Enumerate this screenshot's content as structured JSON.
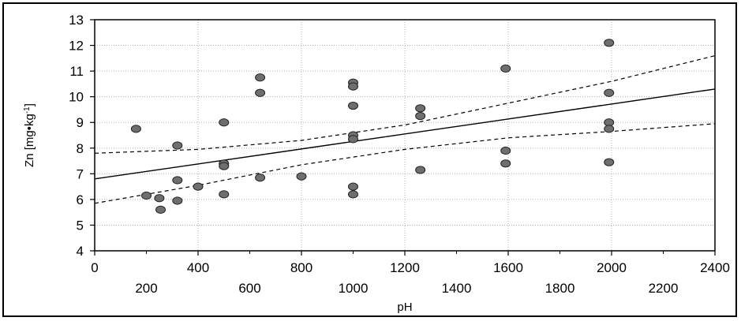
{
  "chart_data": {
    "type": "scatter",
    "title": "",
    "xlabel": "pH",
    "ylabel_main": "Zn [mg•kg",
    "ylabel_sup": "-1",
    "ylabel_close": "]",
    "xlim": [
      0,
      2400
    ],
    "ylim": [
      4,
      13
    ],
    "x_ticks_major": [
      0,
      400,
      800,
      1200,
      1600,
      2000,
      2400
    ],
    "x_ticks_minor": [
      200,
      600,
      1000,
      1400,
      1800,
      2200
    ],
    "y_ticks": [
      4,
      5,
      6,
      7,
      8,
      9,
      10,
      11,
      12,
      13
    ],
    "grid": true,
    "marker_color": "#6e6e6e",
    "points": [
      {
        "x": 160,
        "y": 8.75
      },
      {
        "x": 200,
        "y": 6.15
      },
      {
        "x": 250,
        "y": 6.05
      },
      {
        "x": 255,
        "y": 5.6
      },
      {
        "x": 320,
        "y": 8.1
      },
      {
        "x": 320,
        "y": 6.75
      },
      {
        "x": 320,
        "y": 5.95
      },
      {
        "x": 400,
        "y": 6.5
      },
      {
        "x": 500,
        "y": 9.0
      },
      {
        "x": 500,
        "y": 7.4
      },
      {
        "x": 500,
        "y": 7.3
      },
      {
        "x": 500,
        "y": 6.2
      },
      {
        "x": 640,
        "y": 10.75
      },
      {
        "x": 640,
        "y": 10.15
      },
      {
        "x": 640,
        "y": 6.85
      },
      {
        "x": 800,
        "y": 6.9
      },
      {
        "x": 1000,
        "y": 10.55
      },
      {
        "x": 1000,
        "y": 10.4
      },
      {
        "x": 1000,
        "y": 9.65
      },
      {
        "x": 1000,
        "y": 8.5
      },
      {
        "x": 1000,
        "y": 8.35
      },
      {
        "x": 1000,
        "y": 6.5
      },
      {
        "x": 1000,
        "y": 6.2
      },
      {
        "x": 1260,
        "y": 9.55
      },
      {
        "x": 1260,
        "y": 9.25
      },
      {
        "x": 1260,
        "y": 7.15
      },
      {
        "x": 1590,
        "y": 11.1
      },
      {
        "x": 1590,
        "y": 7.9
      },
      {
        "x": 1590,
        "y": 7.4
      },
      {
        "x": 1990,
        "y": 12.1
      },
      {
        "x": 1990,
        "y": 10.15
      },
      {
        "x": 1990,
        "y": 9.0
      },
      {
        "x": 1990,
        "y": 8.75
      },
      {
        "x": 1990,
        "y": 7.45
      }
    ],
    "regression_line": {
      "x": [
        0,
        2400
      ],
      "y": [
        6.8,
        10.3
      ]
    },
    "confidence_upper": {
      "x": [
        0,
        400,
        800,
        1200,
        1600,
        2000,
        2400
      ],
      "y": [
        7.8,
        7.95,
        8.3,
        8.9,
        9.75,
        10.6,
        11.6
      ]
    },
    "confidence_lower": {
      "x": [
        0,
        400,
        800,
        1200,
        1600,
        2000,
        2400
      ],
      "y": [
        5.85,
        6.55,
        7.35,
        7.95,
        8.4,
        8.65,
        8.95
      ]
    }
  }
}
